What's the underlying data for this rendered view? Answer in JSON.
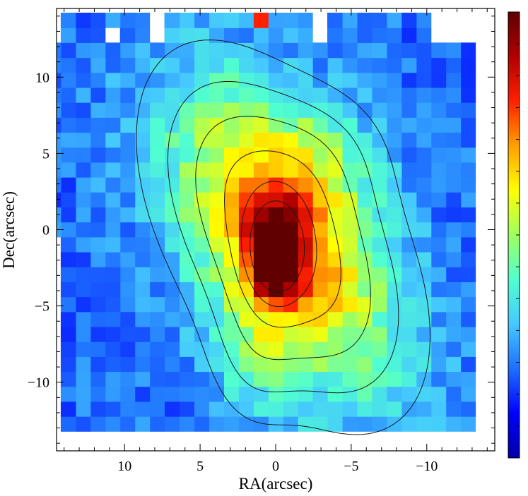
{
  "chart_data": {
    "type": "heatmap",
    "title": "",
    "xlabel": "RA(arcsec)",
    "ylabel": "Dec(arcsec)",
    "xlim": [
      14.5,
      -14.5
    ],
    "ylim": [
      -14.5,
      14.5
    ],
    "x_axis_reversed": false,
    "xticks": [
      -10,
      -5,
      0,
      5,
      10
    ],
    "yticks": [
      -10,
      -5,
      0,
      5,
      10
    ],
    "xtick_labels": [
      "−10",
      "−5",
      "0",
      "5",
      "10"
    ],
    "ytick_labels": [
      "−10",
      "−5",
      "0",
      "5",
      "10"
    ],
    "pixel_size_arcsec": 0.98,
    "colormap": [
      "#0000a8",
      "#0000ff",
      "#1e6fff",
      "#45c8ff",
      "#50ffd0",
      "#a0ff60",
      "#ffff00",
      "#ffa000",
      "#ff2000",
      "#b00000",
      "#600000"
    ],
    "colorbar": {
      "orientation": "vertical",
      "position": "right",
      "tick_count": 14,
      "labels": []
    },
    "peak": {
      "x": 0.0,
      "y": -1.2,
      "intensity": 1.0
    },
    "secondary_peak": {
      "x": 0.6,
      "y": 13.5,
      "intensity": 0.8
    },
    "intensity_model": {
      "description": "normalized intensity, elongated ridge",
      "components": [
        {
          "x": 0.0,
          "y": -1.3,
          "sx": 1.2,
          "sy": 2.0,
          "amp": 0.62
        },
        {
          "x": -0.5,
          "y": -0.5,
          "sx": 4.0,
          "sy": 7.5,
          "angle_deg": 30,
          "amp": 0.55
        },
        {
          "x": 1.5,
          "y": -8.0,
          "sx": 2.0,
          "sy": 3.5,
          "amp": 0.12
        },
        {
          "x": -3.5,
          "y": 5.0,
          "sx": 3.0,
          "sy": 3.0,
          "amp": 0.1
        }
      ],
      "background": 0.2
    },
    "contour_levels": [
      0.09,
      0.18,
      0.29,
      0.42,
      0.56,
      0.72
    ]
  }
}
